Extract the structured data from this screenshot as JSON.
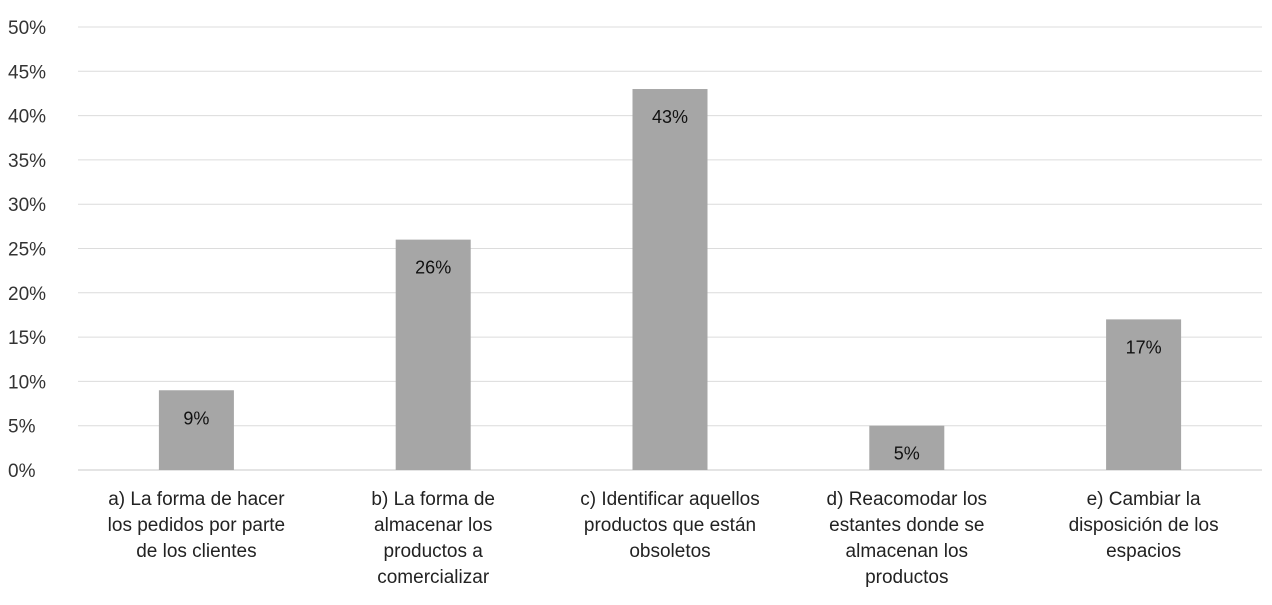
{
  "chart_data": {
    "type": "bar",
    "title": "",
    "xlabel": "",
    "ylabel": "",
    "categories": [
      "a) La forma de hacer los pedidos por parte de los clientes",
      "b) La forma de almacenar los productos a comercializar",
      "c) Identificar aquellos productos que están obsoletos",
      "d) Reacomodar los estantes donde se almacenan los productos",
      "e) Cambiar la disposición de los espacios"
    ],
    "category_lines": [
      [
        "a) La forma de hacer",
        "los pedidos por parte",
        "de los clientes"
      ],
      [
        "b) La forma de",
        "almacenar los",
        "productos a",
        "comercializar"
      ],
      [
        "c) Identificar aquellos",
        "productos que están",
        "obsoletos"
      ],
      [
        "d) Reacomodar los",
        "estantes donde se",
        "almacenan los",
        "productos"
      ],
      [
        "e) Cambiar la",
        "disposición de los",
        "espacios"
      ]
    ],
    "values": [
      9,
      26,
      43,
      5,
      17
    ],
    "data_labels": [
      "9%",
      "26%",
      "43%",
      "5%",
      "17%"
    ],
    "ylim": [
      0,
      50
    ],
    "y_ticks": [
      0,
      5,
      10,
      15,
      20,
      25,
      30,
      35,
      40,
      45,
      50
    ],
    "y_tick_labels": [
      "0%",
      "5%",
      "10%",
      "15%",
      "20%",
      "25%",
      "30%",
      "35%",
      "40%",
      "45%",
      "50%"
    ],
    "grid": true,
    "legend": "none",
    "bar_color": "#a6a6a6"
  }
}
